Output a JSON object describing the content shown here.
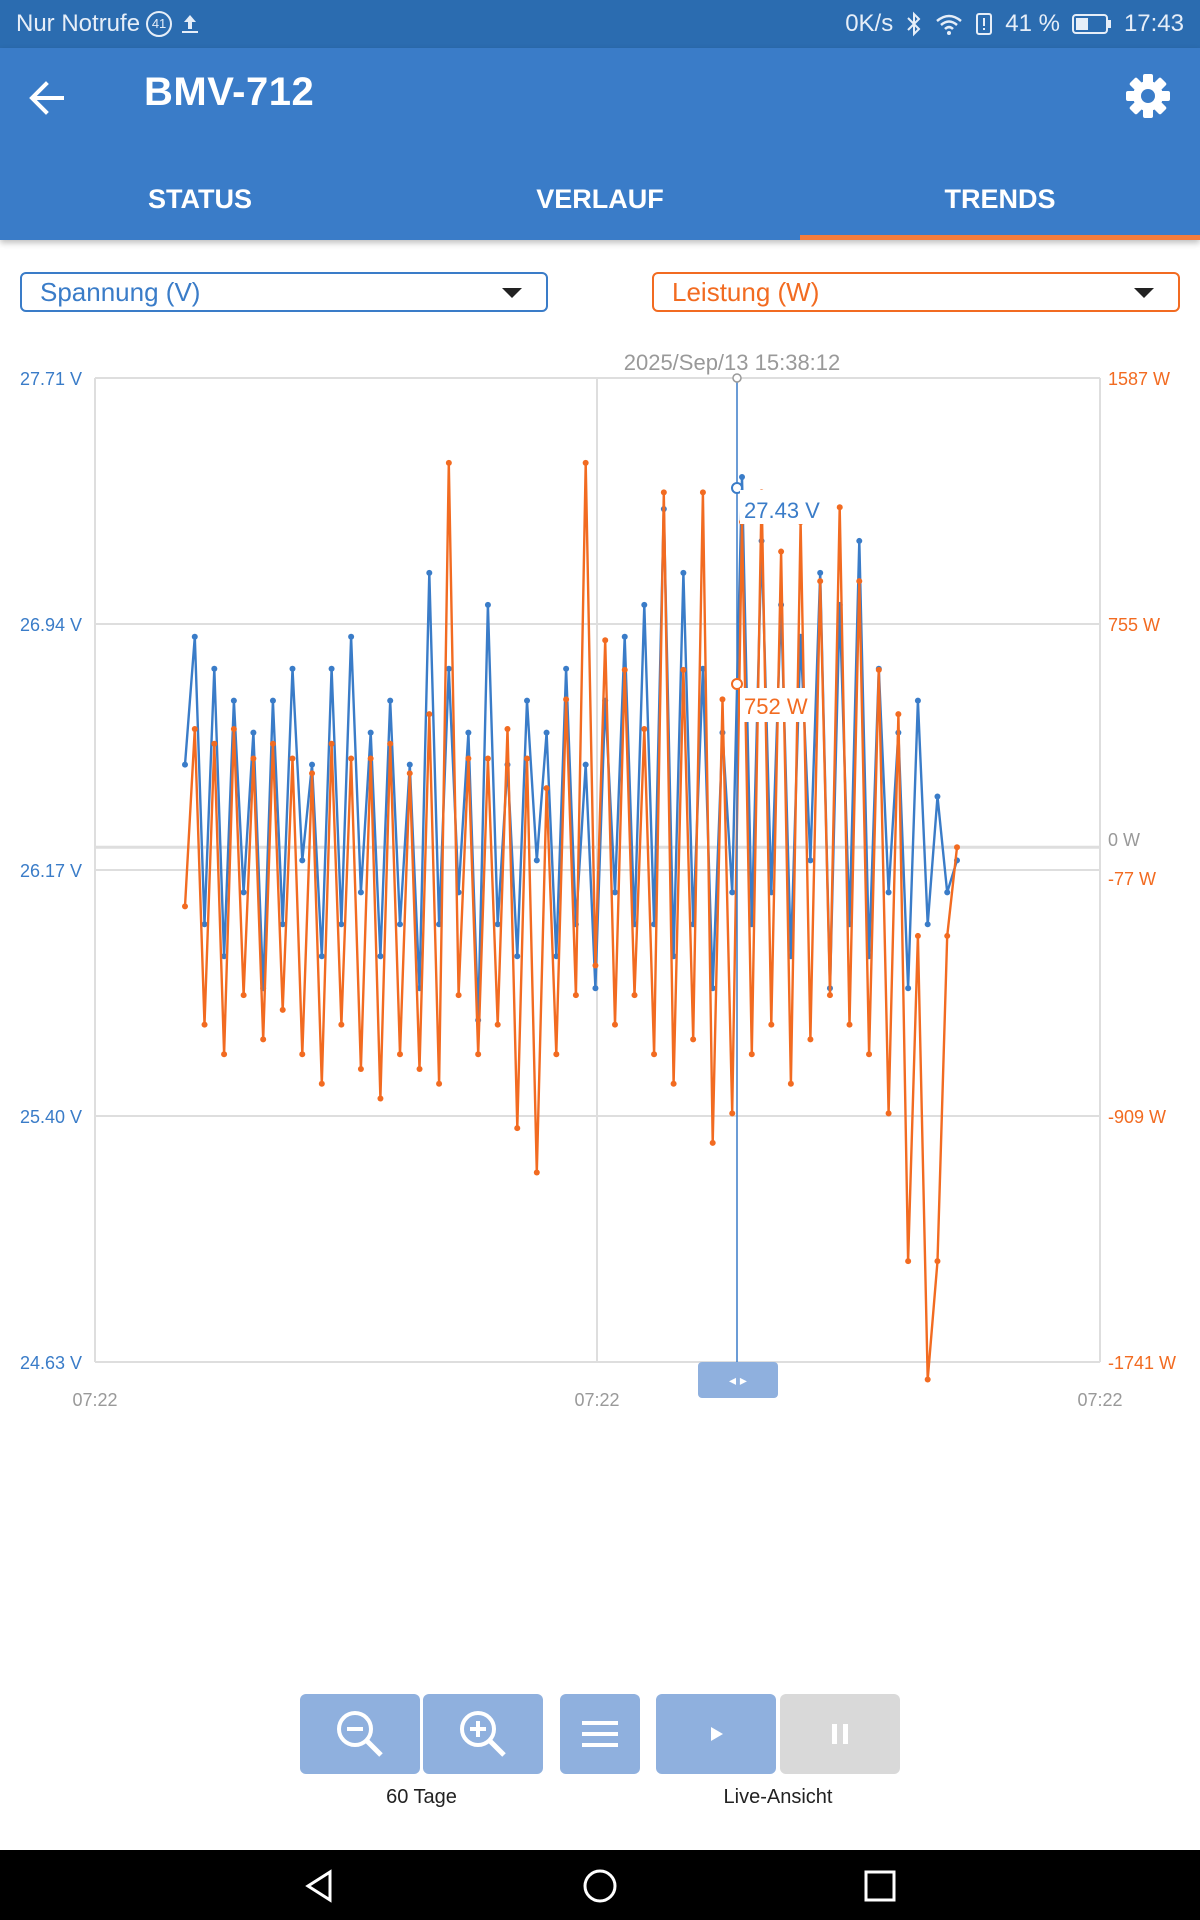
{
  "status_bar": {
    "carrier": "Nur Notrufe",
    "notif_badge": "41",
    "speed": "0K/s",
    "battery": "41 %",
    "time": "17:43"
  },
  "app_bar": {
    "title": "BMV-712"
  },
  "tabs": [
    {
      "label": "STATUS",
      "active": false
    },
    {
      "label": "VERLAUF",
      "active": false
    },
    {
      "label": "TRENDS",
      "active": true
    }
  ],
  "selectors": {
    "left": {
      "value": "Spannung (V)",
      "color": "#3a7cc8"
    },
    "right": {
      "value": "Leistung (W)",
      "color": "#f26b21"
    }
  },
  "chart_data": {
    "type": "line",
    "cursor_timestamp": "2025/Sep/13 15:38:12",
    "cursor_values": {
      "voltage": "27.43 V",
      "power": "752 W"
    },
    "left_axis": {
      "ticks": [
        "27.71 V",
        "26.94 V",
        "26.17 V",
        "25.40 V",
        "24.63 V"
      ],
      "ylim": [
        24.63,
        27.71
      ],
      "color": "#3a7cc8"
    },
    "right_axis": {
      "ticks": [
        "1587 W",
        "755 W",
        "0 W",
        "-77 W",
        "-909 W",
        "-1741 W"
      ],
      "ylim": [
        -1741,
        1587
      ],
      "color": "#f26b21"
    },
    "x_ticks": [
      "07:22",
      "07:22",
      "07:22"
    ],
    "grid": true,
    "series": [
      {
        "name": "Spannung (V)",
        "axis": "left",
        "color": "#3a7cc8",
        "values": [
          26.5,
          26.9,
          26.0,
          26.8,
          25.9,
          26.7,
          26.1,
          26.6,
          25.8,
          26.7,
          26.0,
          26.8,
          26.2,
          26.5,
          25.9,
          26.8,
          26.0,
          26.9,
          26.1,
          26.6,
          25.9,
          26.7,
          26.0,
          26.5,
          25.8,
          27.1,
          26.0,
          26.8,
          26.1,
          26.6,
          25.7,
          27.0,
          26.0,
          26.5,
          25.9,
          26.7,
          26.2,
          26.6,
          25.9,
          26.8,
          26.0,
          26.5,
          25.8,
          26.7,
          26.1,
          26.9,
          26.0,
          27.0,
          26.0,
          27.3,
          25.9,
          27.1,
          26.0,
          26.8,
          25.8,
          26.6,
          26.1,
          27.4,
          26.0,
          27.2,
          26.1,
          27.0,
          25.9,
          26.9,
          26.2,
          27.1,
          25.8,
          27.0,
          26.0,
          27.2,
          25.9,
          26.8,
          26.1,
          26.6,
          25.8,
          26.7,
          26.0,
          26.4,
          26.1,
          26.2
        ]
      },
      {
        "name": "Leistung (W)",
        "axis": "right",
        "color": "#f26b21",
        "values": [
          -200,
          400,
          -600,
          350,
          -700,
          400,
          -500,
          300,
          -650,
          350,
          -550,
          300,
          -700,
          250,
          -800,
          350,
          -600,
          300,
          -750,
          300,
          -850,
          350,
          -700,
          250,
          -750,
          450,
          -800,
          1300,
          -500,
          300,
          -700,
          300,
          -600,
          400,
          -950,
          300,
          -1100,
          200,
          -700,
          500,
          -500,
          1300,
          -400,
          700,
          -600,
          600,
          -500,
          400,
          -700,
          1200,
          -800,
          600,
          -650,
          1200,
          -1000,
          500,
          -900,
          1100,
          -700,
          1200,
          -600,
          1000,
          -800,
          1100,
          -650,
          900,
          -500,
          1150,
          -600,
          900,
          -700,
          600,
          -900,
          450,
          -1400,
          -300,
          -1800,
          -1400,
          -300,
          0
        ]
      }
    ]
  },
  "controls": {
    "zoom_out_icon": "zoom-out-icon",
    "zoom_in_icon": "zoom-in-icon",
    "menu_icon": "menu-icon",
    "play_icon": "play-icon",
    "pause_icon": "pause-icon",
    "range_label": "60 Tage",
    "live_label": "Live-Ansicht"
  }
}
